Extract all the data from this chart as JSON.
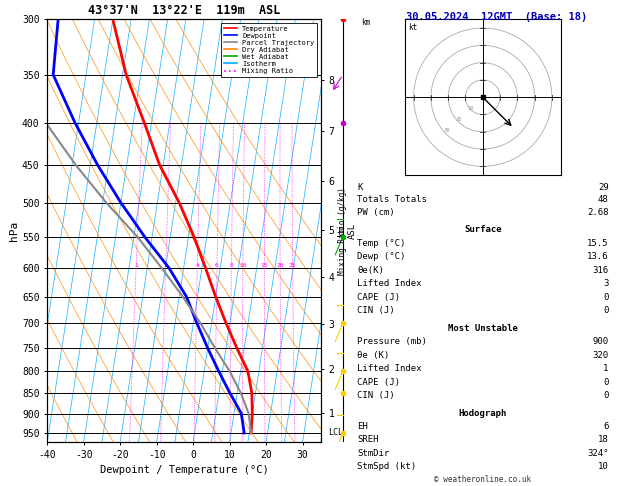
{
  "title_left": "43°37'N  13°22'E  119m  ASL",
  "title_right": "30.05.2024  12GMT  (Base: 18)",
  "xlabel": "Dewpoint / Temperature (°C)",
  "ylabel_left": "hPa",
  "background_color": "#ffffff",
  "plot_bg": "#ffffff",
  "pressure_levels": [
    300,
    350,
    400,
    450,
    500,
    550,
    600,
    650,
    700,
    750,
    800,
    850,
    900,
    950
  ],
  "temp_x": [
    15.5,
    15.0,
    14.0,
    12.0,
    8.0,
    4.0,
    0.0,
    -4.0,
    -8.5,
    -14.0,
    -21.0,
    -27.0,
    -34.0,
    -40.0
  ],
  "temp_p": [
    950,
    900,
    850,
    800,
    750,
    700,
    650,
    600,
    550,
    500,
    450,
    400,
    350,
    300
  ],
  "dewp_x": [
    13.6,
    12.0,
    8.0,
    4.0,
    0.0,
    -4.0,
    -8.0,
    -14.0,
    -22.0,
    -30.0,
    -38.0,
    -46.0,
    -54.0,
    -55.0
  ],
  "dewp_p": [
    950,
    900,
    850,
    800,
    750,
    700,
    650,
    600,
    550,
    500,
    450,
    400,
    350,
    300
  ],
  "parcel_x": [
    15.5,
    14.0,
    11.0,
    7.0,
    2.0,
    -3.0,
    -9.0,
    -16.0,
    -24.0,
    -34.0,
    -44.0,
    -54.0,
    -62.0,
    -65.0
  ],
  "parcel_p": [
    950,
    900,
    850,
    800,
    750,
    700,
    650,
    600,
    550,
    500,
    450,
    400,
    350,
    300
  ],
  "x_min": -40,
  "x_max": 35,
  "skew_factor": 18,
  "temp_color": "#ff0000",
  "dewp_color": "#0000ff",
  "parcel_color": "#888888",
  "dry_adiabat_color": "#ff8800",
  "wet_adiabat_color": "#00aa00",
  "isotherm_color": "#00aaff",
  "mixing_ratio_color": "#ff00ff",
  "hodograph_wind_color": "#ffcc00",
  "hodograph_wind_top_color": "#cc00cc",
  "legend_items": [
    "Temperature",
    "Dewpoint",
    "Parcel Trajectory",
    "Dry Adiabat",
    "Wet Adiabat",
    "Isotherm",
    "Mixing Ratio"
  ],
  "legend_colors": [
    "#ff0000",
    "#0000ff",
    "#888888",
    "#ff8800",
    "#00aa00",
    "#00aaff",
    "#ff00ff"
  ],
  "legend_styles": [
    "solid",
    "solid",
    "solid",
    "solid",
    "solid",
    "solid",
    "dotted"
  ],
  "mixing_ratio_vals": [
    1,
    2,
    4,
    6,
    8,
    10,
    15,
    20,
    25
  ],
  "mixing_ratio_label_vals": [
    2,
    4,
    6,
    8,
    10,
    15,
    20,
    25
  ],
  "hodograph_circles": [
    10,
    20,
    30,
    40
  ],
  "km_ticks": [
    1,
    2,
    3,
    4,
    5,
    6,
    7,
    8
  ],
  "lcl_pressure": 950,
  "copyright": "© weatheronline.co.uk",
  "stats_top": [
    [
      "K",
      "29"
    ],
    [
      "Totals Totals",
      "48"
    ],
    [
      "PW (cm)",
      "2.68"
    ]
  ],
  "stats_surface_title": "Surface",
  "stats_surface": [
    [
      "Temp (°C)",
      "15.5"
    ],
    [
      "Dewp (°C)",
      "13.6"
    ],
    [
      "θe(K)",
      "316"
    ],
    [
      "Lifted Index",
      "3"
    ],
    [
      "CAPE (J)",
      "0"
    ],
    [
      "CIN (J)",
      "0"
    ]
  ],
  "stats_mu_title": "Most Unstable",
  "stats_mu": [
    [
      "Pressure (mb)",
      "900"
    ],
    [
      "θe (K)",
      "320"
    ],
    [
      "Lifted Index",
      "1"
    ],
    [
      "CAPE (J)",
      "0"
    ],
    [
      "CIN (J)",
      "0"
    ]
  ],
  "stats_hodo_title": "Hodograph",
  "stats_hodo": [
    [
      "EH",
      "6"
    ],
    [
      "SREH",
      "18"
    ],
    [
      "StmDir",
      "324°"
    ],
    [
      "StmSpd (kt)",
      "10"
    ]
  ]
}
